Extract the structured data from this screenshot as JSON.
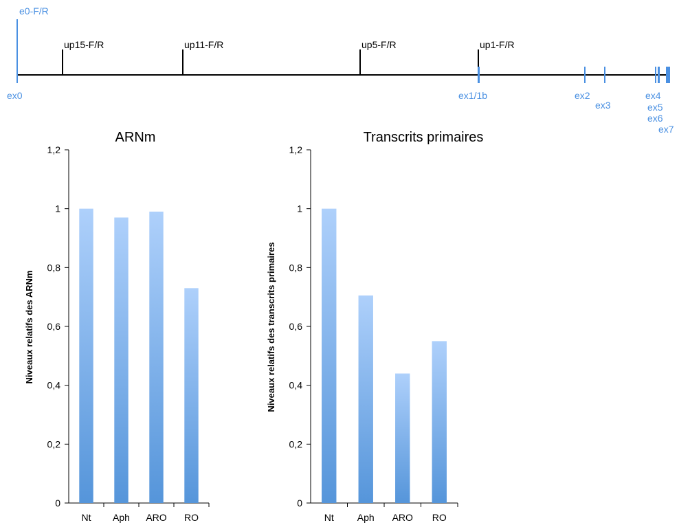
{
  "gene_map": {
    "top_label": "e0-F/R",
    "primers": [
      "up15-F/R",
      "up11-F/R",
      "up5-F/R",
      "up1-F/R"
    ],
    "exons": [
      "ex0",
      "ex1/1b",
      "ex2",
      "ex3",
      "ex4",
      "ex5",
      "ex6",
      "ex7"
    ],
    "colors": {
      "line": "#000000",
      "exon": "#4a90e2"
    }
  },
  "chart_data": [
    {
      "type": "bar",
      "title": "ARNm",
      "ylabel": "Niveaux relatifs des ARNm",
      "xlabel": "",
      "categories": [
        "Nt",
        "Aph",
        "ARO",
        "RO"
      ],
      "values": [
        1.0,
        0.97,
        0.99,
        0.73
      ],
      "ylim": [
        0,
        1.2
      ],
      "yticks": [
        "0",
        "0,2",
        "0,4",
        "0,6",
        "0,8",
        "1",
        "1,2"
      ],
      "grid": false,
      "bar_color_top": "#aed0fb",
      "bar_color_bottom": "#5595da"
    },
    {
      "type": "bar",
      "title": "Transcrits primaires",
      "ylabel": "Niveaux relatifs des transcrits primaires",
      "xlabel": "",
      "categories": [
        "Nt",
        "Aph",
        "ARO",
        "RO"
      ],
      "values": [
        1.0,
        0.705,
        0.44,
        0.55
      ],
      "ylim": [
        0,
        1.2
      ],
      "yticks": [
        "0",
        "0,2",
        "0,4",
        "0,6",
        "0,8",
        "1",
        "1,2"
      ],
      "grid": false,
      "bar_color_top": "#aed0fb",
      "bar_color_bottom": "#5595da"
    }
  ]
}
